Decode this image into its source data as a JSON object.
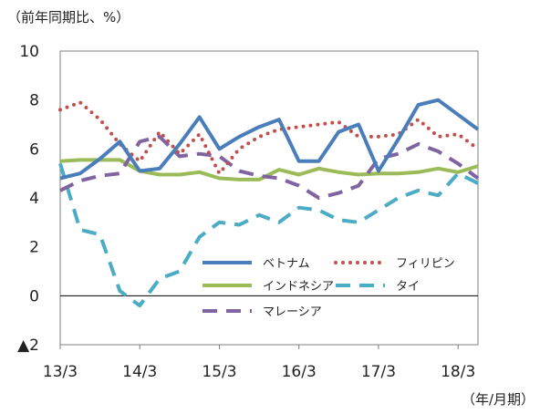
{
  "chart_data": {
    "type": "line",
    "y_unit_label": "（前年同期比、%）",
    "x_unit_label": "（年/月期）",
    "ylim": [
      -2,
      10
    ],
    "y_ticks": [
      10,
      8,
      6,
      4,
      2,
      0,
      -2
    ],
    "y_tick_labels": [
      "10",
      "8",
      "6",
      "4",
      "2",
      "0",
      "▲2"
    ],
    "x_ticks": [
      "13/3",
      "14/3",
      "15/3",
      "16/3",
      "17/3",
      "18/3"
    ],
    "x_tick_positions": [
      0,
      4,
      8,
      12,
      16,
      20
    ],
    "x_range": [
      0,
      21
    ],
    "grid": false,
    "legend_position": "bottom-right",
    "series": [
      {
        "name": "ベトナム",
        "color": "#4a7ebb",
        "dash": "solid",
        "values": [
          4.8,
          5.0,
          5.6,
          6.3,
          5.1,
          5.2,
          6.2,
          7.3,
          6.0,
          6.5,
          6.9,
          7.2,
          5.5,
          5.5,
          6.7,
          7.0,
          5.1,
          6.4,
          7.8,
          8.0,
          7.4,
          6.8
        ]
      },
      {
        "name": "フィリピン",
        "color": "#c0504d",
        "dash": "dots",
        "values": [
          7.6,
          7.9,
          7.2,
          6.2,
          5.5,
          6.7,
          5.8,
          6.6,
          5.0,
          6.0,
          6.5,
          6.8,
          6.9,
          7.0,
          7.1,
          6.5,
          6.5,
          6.6,
          7.2,
          6.5,
          6.6,
          6.0
        ]
      },
      {
        "name": "インドネシア",
        "color": "#9bbb59",
        "dash": "solid",
        "values": [
          5.5,
          5.55,
          5.55,
          5.55,
          5.1,
          4.95,
          4.95,
          5.05,
          4.8,
          4.75,
          4.75,
          5.15,
          4.95,
          5.2,
          5.05,
          4.95,
          5.0,
          5.0,
          5.05,
          5.2,
          5.05,
          5.3
        ]
      },
      {
        "name": "タイ",
        "color": "#4bacc6",
        "dash": "dash",
        "values": [
          5.4,
          2.7,
          2.5,
          0.2,
          -0.4,
          0.7,
          1.0,
          2.4,
          3.0,
          2.9,
          3.3,
          3.0,
          3.6,
          3.5,
          3.1,
          3.0,
          3.5,
          4.0,
          4.3,
          4.1,
          5.0,
          4.6
        ]
      },
      {
        "name": "マレーシア",
        "color": "#8064a2",
        "dash": "dash",
        "values": [
          4.3,
          4.7,
          4.9,
          5.0,
          6.3,
          6.5,
          5.7,
          5.8,
          5.7,
          5.1,
          4.9,
          4.8,
          4.5,
          4.0,
          4.2,
          4.5,
          5.6,
          5.8,
          6.2,
          5.9,
          5.4,
          4.8
        ]
      }
    ]
  }
}
